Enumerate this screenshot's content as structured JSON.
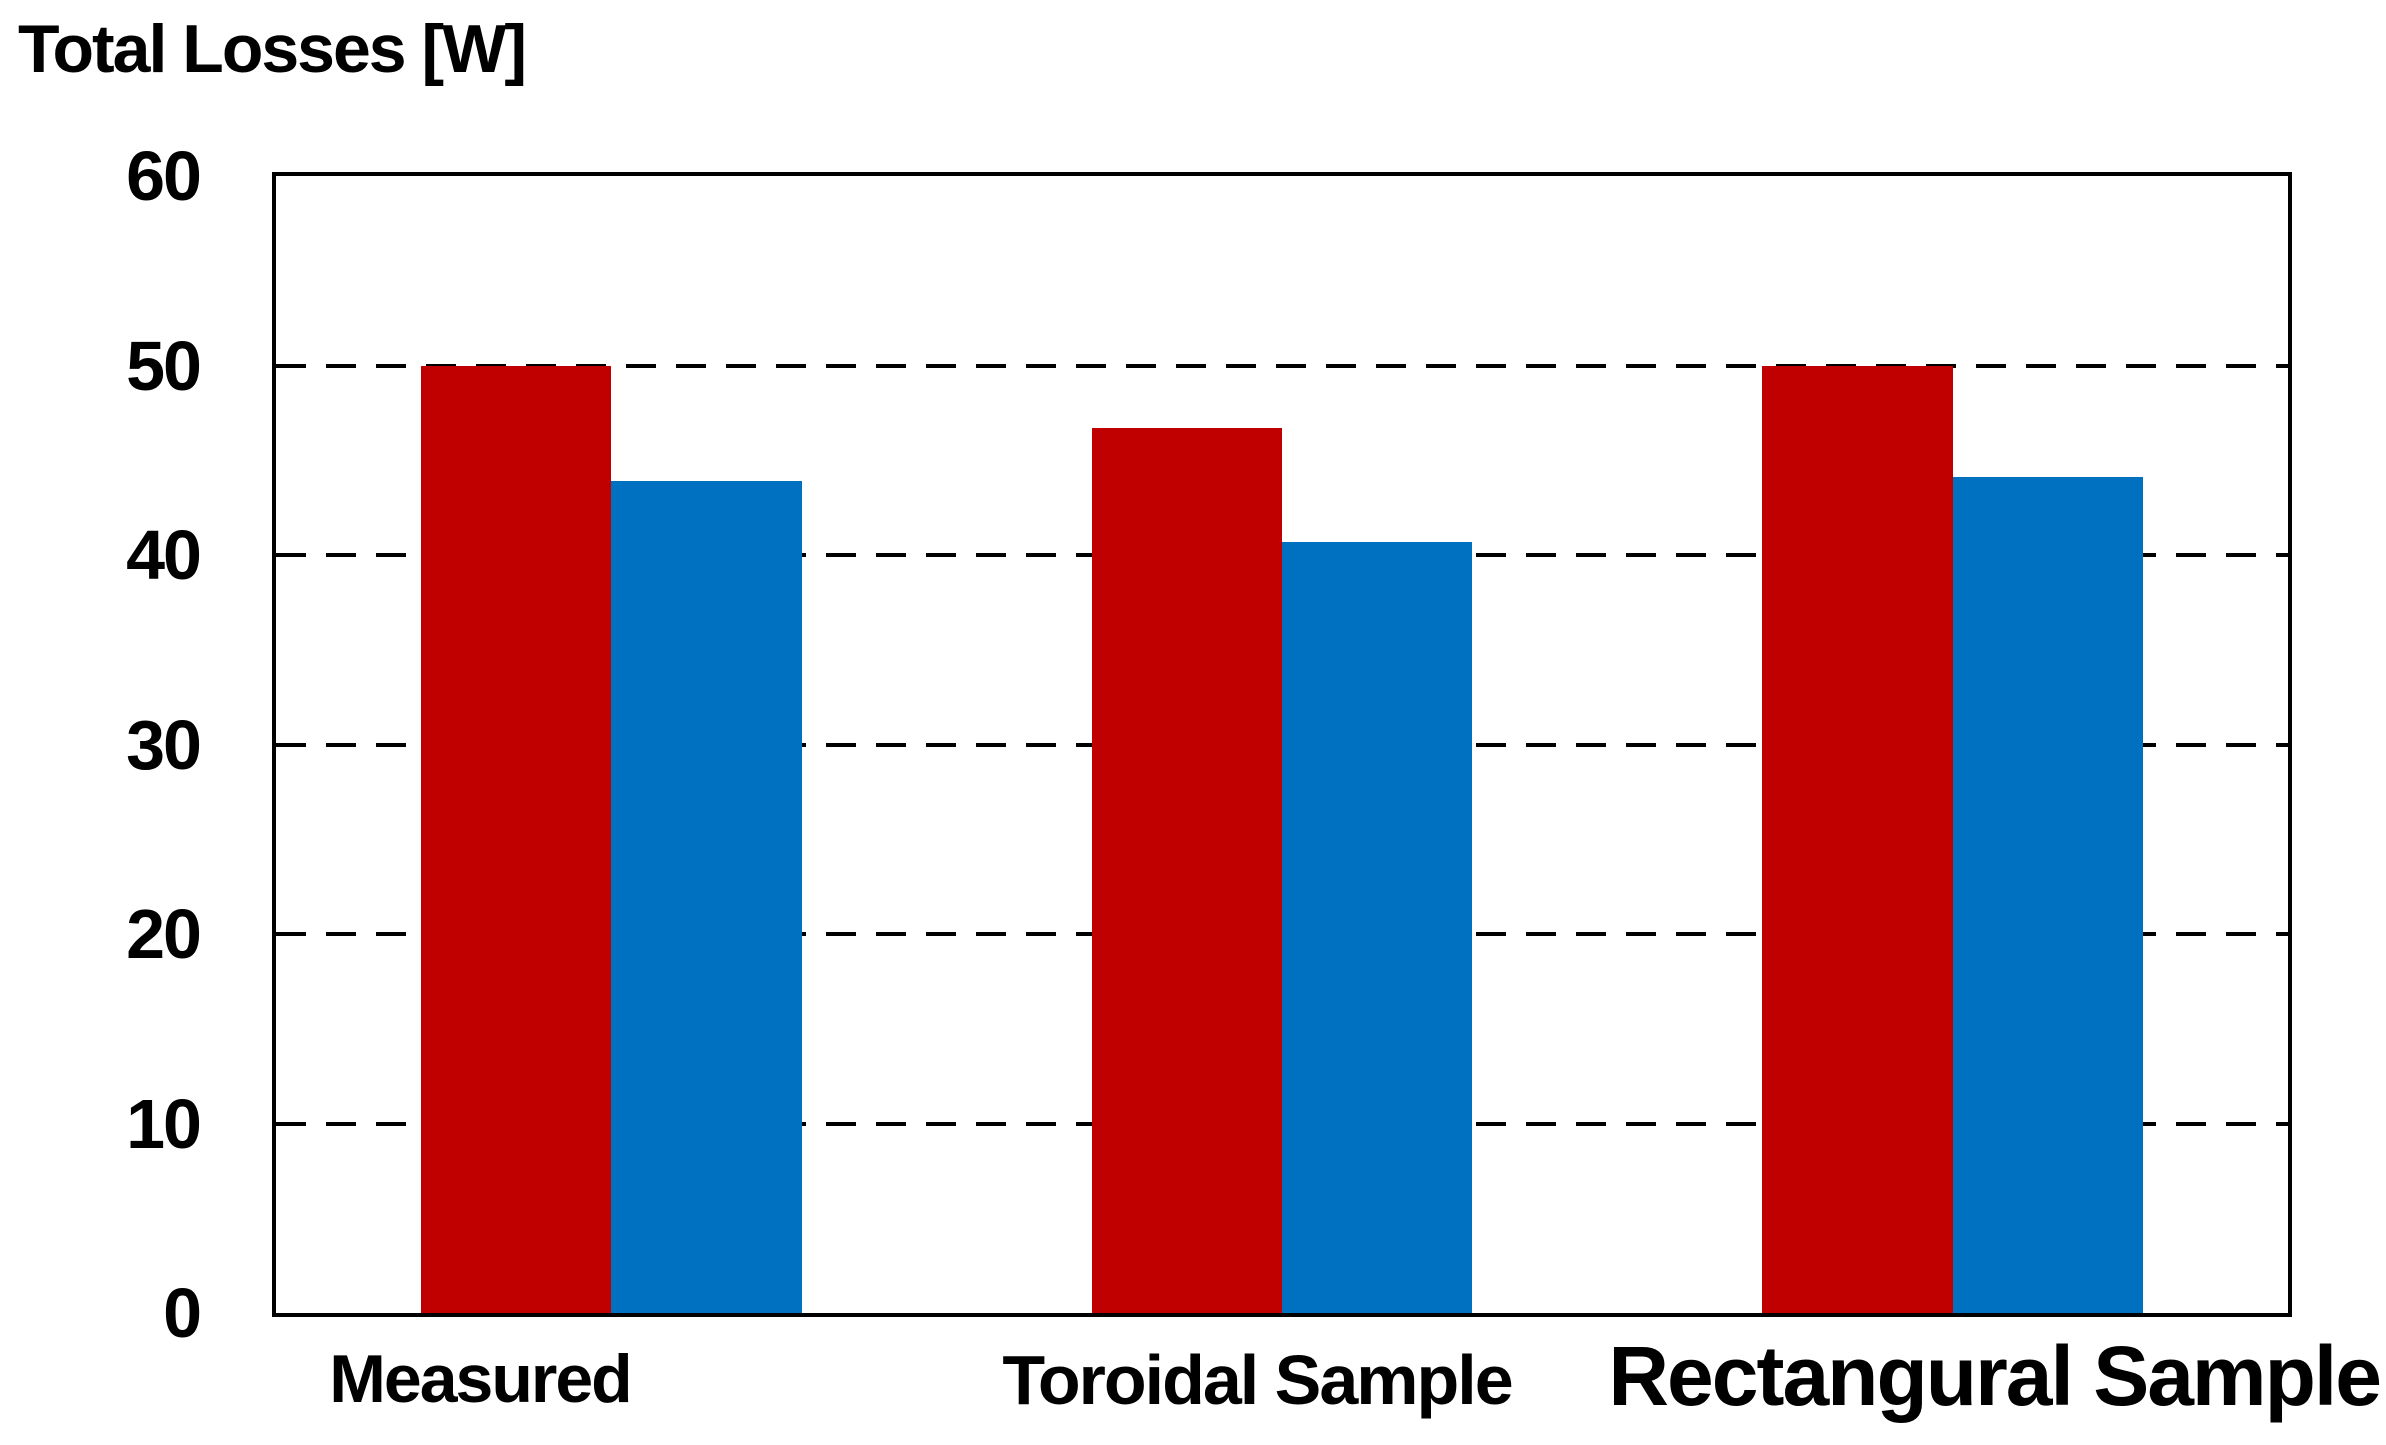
{
  "chart_data": {
    "type": "bar",
    "title": "Total Losses [W]",
    "categories": [
      "Measured",
      "Toroidal Sample",
      "Rectangural Sample"
    ],
    "series": [
      {
        "name": "red",
        "color": "#C00000",
        "values": [
          50,
          46.7,
          50
        ]
      },
      {
        "name": "blue",
        "color": "#0070C0",
        "values": [
          43.9,
          40.7,
          44.1
        ]
      }
    ],
    "xlabel": "",
    "ylabel": "",
    "ylim": [
      0,
      60
    ],
    "yticks": [
      0,
      10,
      20,
      30,
      40,
      50,
      60
    ],
    "grid": "dashed horizontal gridlines at each tick",
    "legend": "none",
    "plot_border": "solid black frame"
  }
}
